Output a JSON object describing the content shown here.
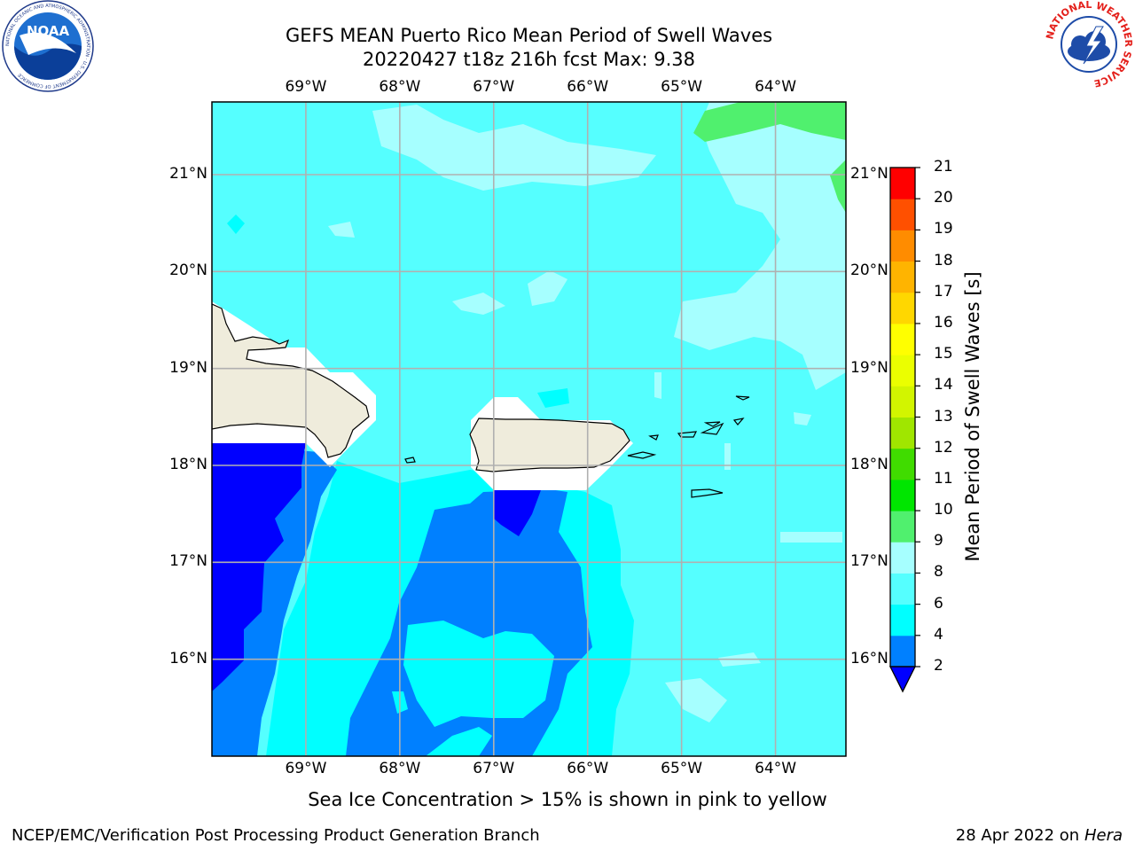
{
  "header": {
    "title_line1": "GEFS MEAN Puerto Rico Mean Period of Swell Waves",
    "title_line2": "20220427 t18z 216h fcst   Max: 9.38"
  },
  "logos": {
    "noaa": {
      "icon": "noaa-logo",
      "text": "NOAA",
      "ring_text": "NATIONAL OCEANIC AND ATMOSPHERIC ADMINISTRATION · U.S. DEPARTMENT OF COMMERCE"
    },
    "nws": {
      "icon": "nws-logo",
      "ring_text": "NATIONAL WEATHER SERVICE"
    }
  },
  "map": {
    "lon_labels": [
      "69°W",
      "68°W",
      "67°W",
      "66°W",
      "65°W",
      "64°W"
    ],
    "lat_labels": [
      "21°N",
      "20°N",
      "19°N",
      "18°N",
      "17°N",
      "16°N"
    ],
    "lon_range": [
      -70.0,
      -63.25
    ],
    "lat_range": [
      15.0,
      21.75
    ],
    "grid": true,
    "land_color": "#efecdc",
    "grid_color": "#b0b0b0"
  },
  "colorbar": {
    "label": "Mean Period of Swell Waves [s]",
    "ticks": [
      "2",
      "4",
      "6",
      "8",
      "9",
      "10",
      "11",
      "12",
      "13",
      "14",
      "15",
      "16",
      "17",
      "18",
      "19",
      "20",
      "21"
    ],
    "extend": "min",
    "colors": [
      "#0080ff",
      "#00ffff",
      "#55ffff",
      "#a6ffff",
      "#50f06e",
      "#00e600",
      "#40dc00",
      "#a0e600",
      "#d2f500",
      "#ebff00",
      "#ffff00",
      "#ffd700",
      "#ffb400",
      "#ff8c00",
      "#ff5000",
      "#ff0000"
    ],
    "under_color": "#0000ff"
  },
  "subtitle": "Sea Ice Concentration > 15% is shown in pink to yellow",
  "footer": {
    "left": "NCEP/EMC/Verification Post Processing Product Generation Branch",
    "date": "28 Apr 2022 on ",
    "machine": "Hera"
  }
}
